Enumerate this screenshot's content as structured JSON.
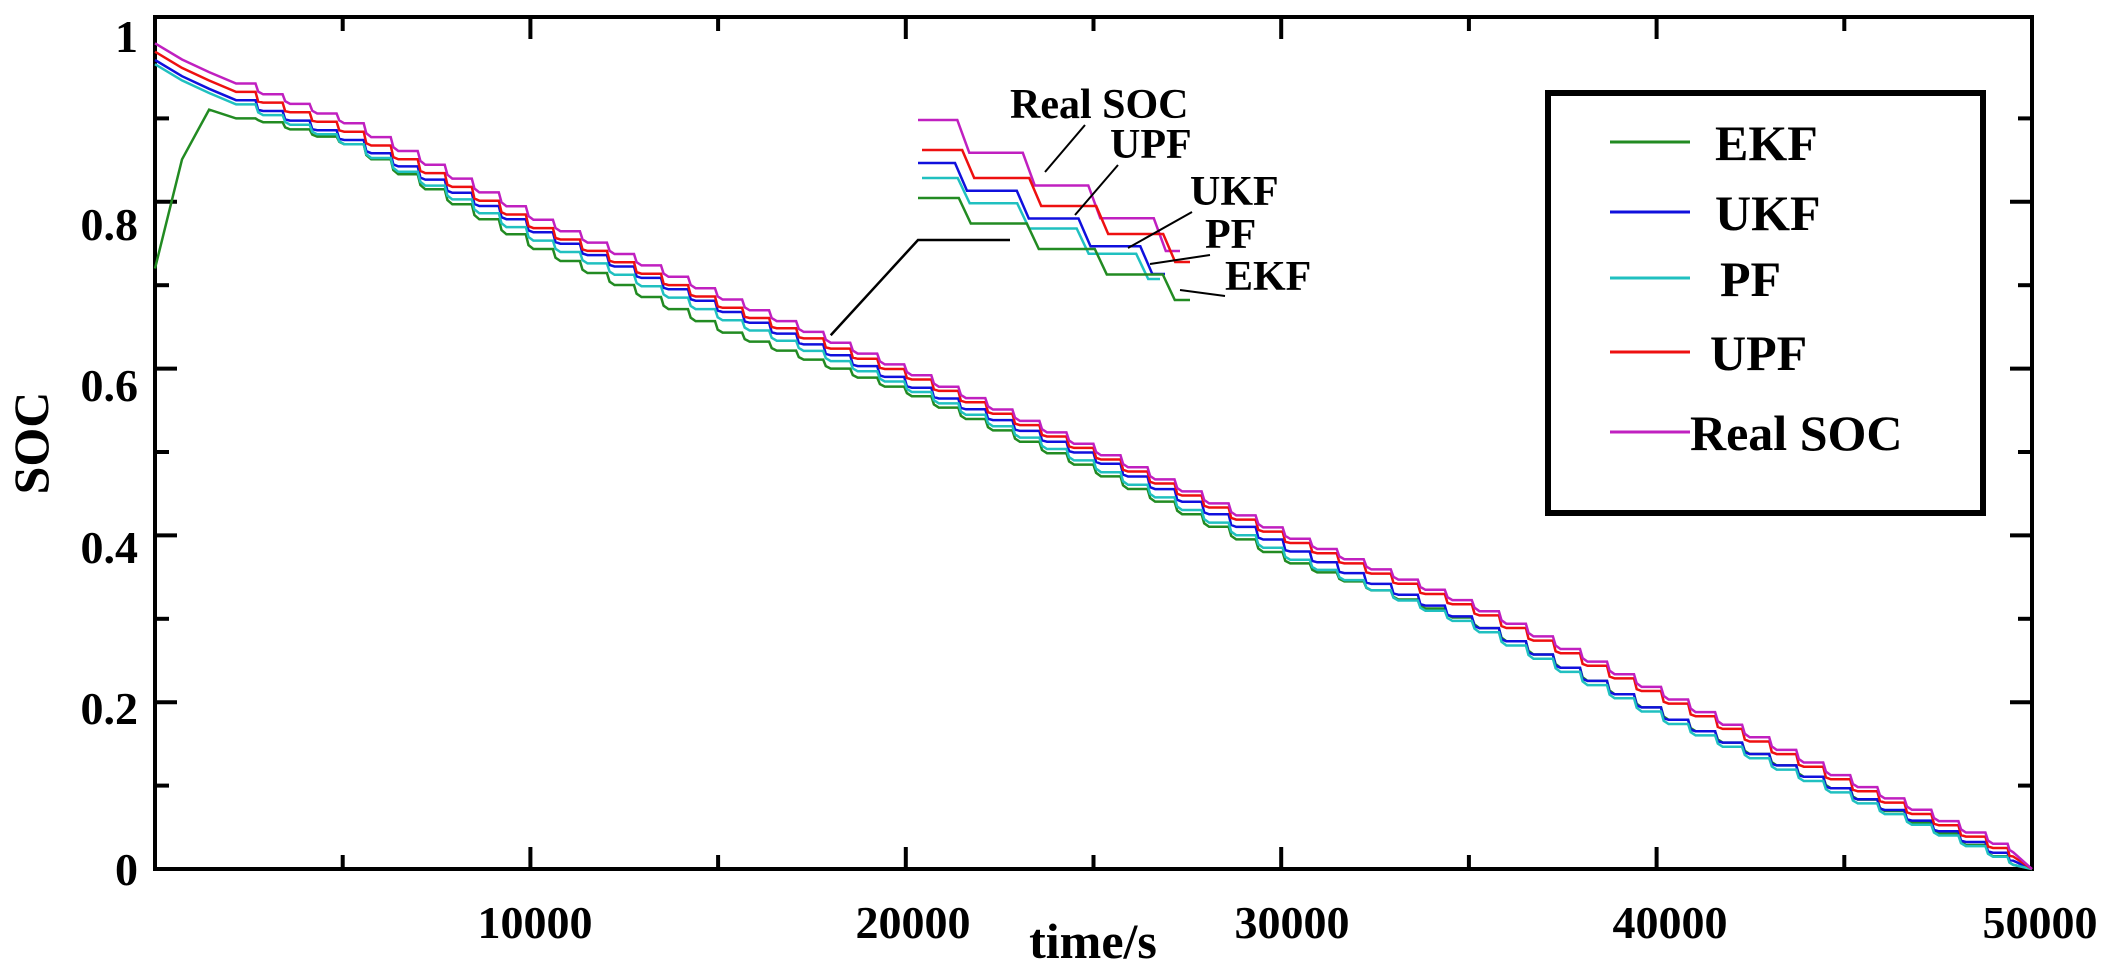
{
  "chart_data": {
    "type": "line",
    "title": "",
    "xlabel": "time/s",
    "ylabel": "SOC",
    "xlim": [
      0,
      50000
    ],
    "ylim": [
      0,
      1
    ],
    "x_ticks": [
      10000,
      20000,
      30000,
      40000,
      50000
    ],
    "x_tick_labels": [
      "10000",
      "20000",
      "30000",
      "40000",
      "50000"
    ],
    "y_ticks": [
      0,
      0.2,
      0.4,
      0.6,
      0.8,
      1
    ],
    "y_tick_labels": [
      "0",
      "0.2",
      "0.4",
      "0.6",
      "0.8",
      "1"
    ],
    "grid": false,
    "legend_position": "top-right",
    "x": [
      0,
      500,
      1000,
      1200,
      2000,
      2500,
      5000,
      10000,
      15000,
      20000,
      25000,
      30000,
      35000,
      40000,
      45000,
      49500
    ],
    "series": [
      {
        "name": "EKF",
        "color": "#228B22",
        "values": [
          0.72,
          0.82,
          0.89,
          0.915,
          0.9,
          0.9,
          0.87,
          0.745,
          0.645,
          0.57,
          0.475,
          0.37,
          0.295,
          0.185,
          0.09,
          0.005
        ]
      },
      {
        "name": "UKF",
        "color": "#1010DD",
        "values": [
          0.97,
          0.955,
          0.945,
          0.94,
          0.925,
          0.915,
          0.875,
          0.765,
          0.67,
          0.58,
          0.49,
          0.385,
          0.295,
          0.185,
          0.09,
          0.01
        ]
      },
      {
        "name": "PF",
        "color": "#20C0C0",
        "values": [
          0.965,
          0.95,
          0.94,
          0.935,
          0.92,
          0.91,
          0.87,
          0.755,
          0.66,
          0.575,
          0.48,
          0.375,
          0.29,
          0.18,
          0.085,
          0.005
        ]
      },
      {
        "name": "UPF",
        "color": "#EE1010",
        "values": [
          0.98,
          0.965,
          0.955,
          0.95,
          0.935,
          0.925,
          0.885,
          0.77,
          0.675,
          0.59,
          0.495,
          0.395,
          0.31,
          0.205,
          0.1,
          0.015
        ]
      },
      {
        "name": "Real SOC",
        "color": "#C020C0",
        "values": [
          0.99,
          0.975,
          0.965,
          0.96,
          0.945,
          0.935,
          0.895,
          0.78,
          0.685,
          0.595,
          0.5,
          0.4,
          0.315,
          0.21,
          0.105,
          0.02
        ]
      }
    ],
    "inset": {
      "labels": [
        "Real SOC",
        "UPF",
        "UKF",
        "PF",
        "EKF"
      ],
      "source_x": 18000,
      "source_y": 0.64
    }
  }
}
